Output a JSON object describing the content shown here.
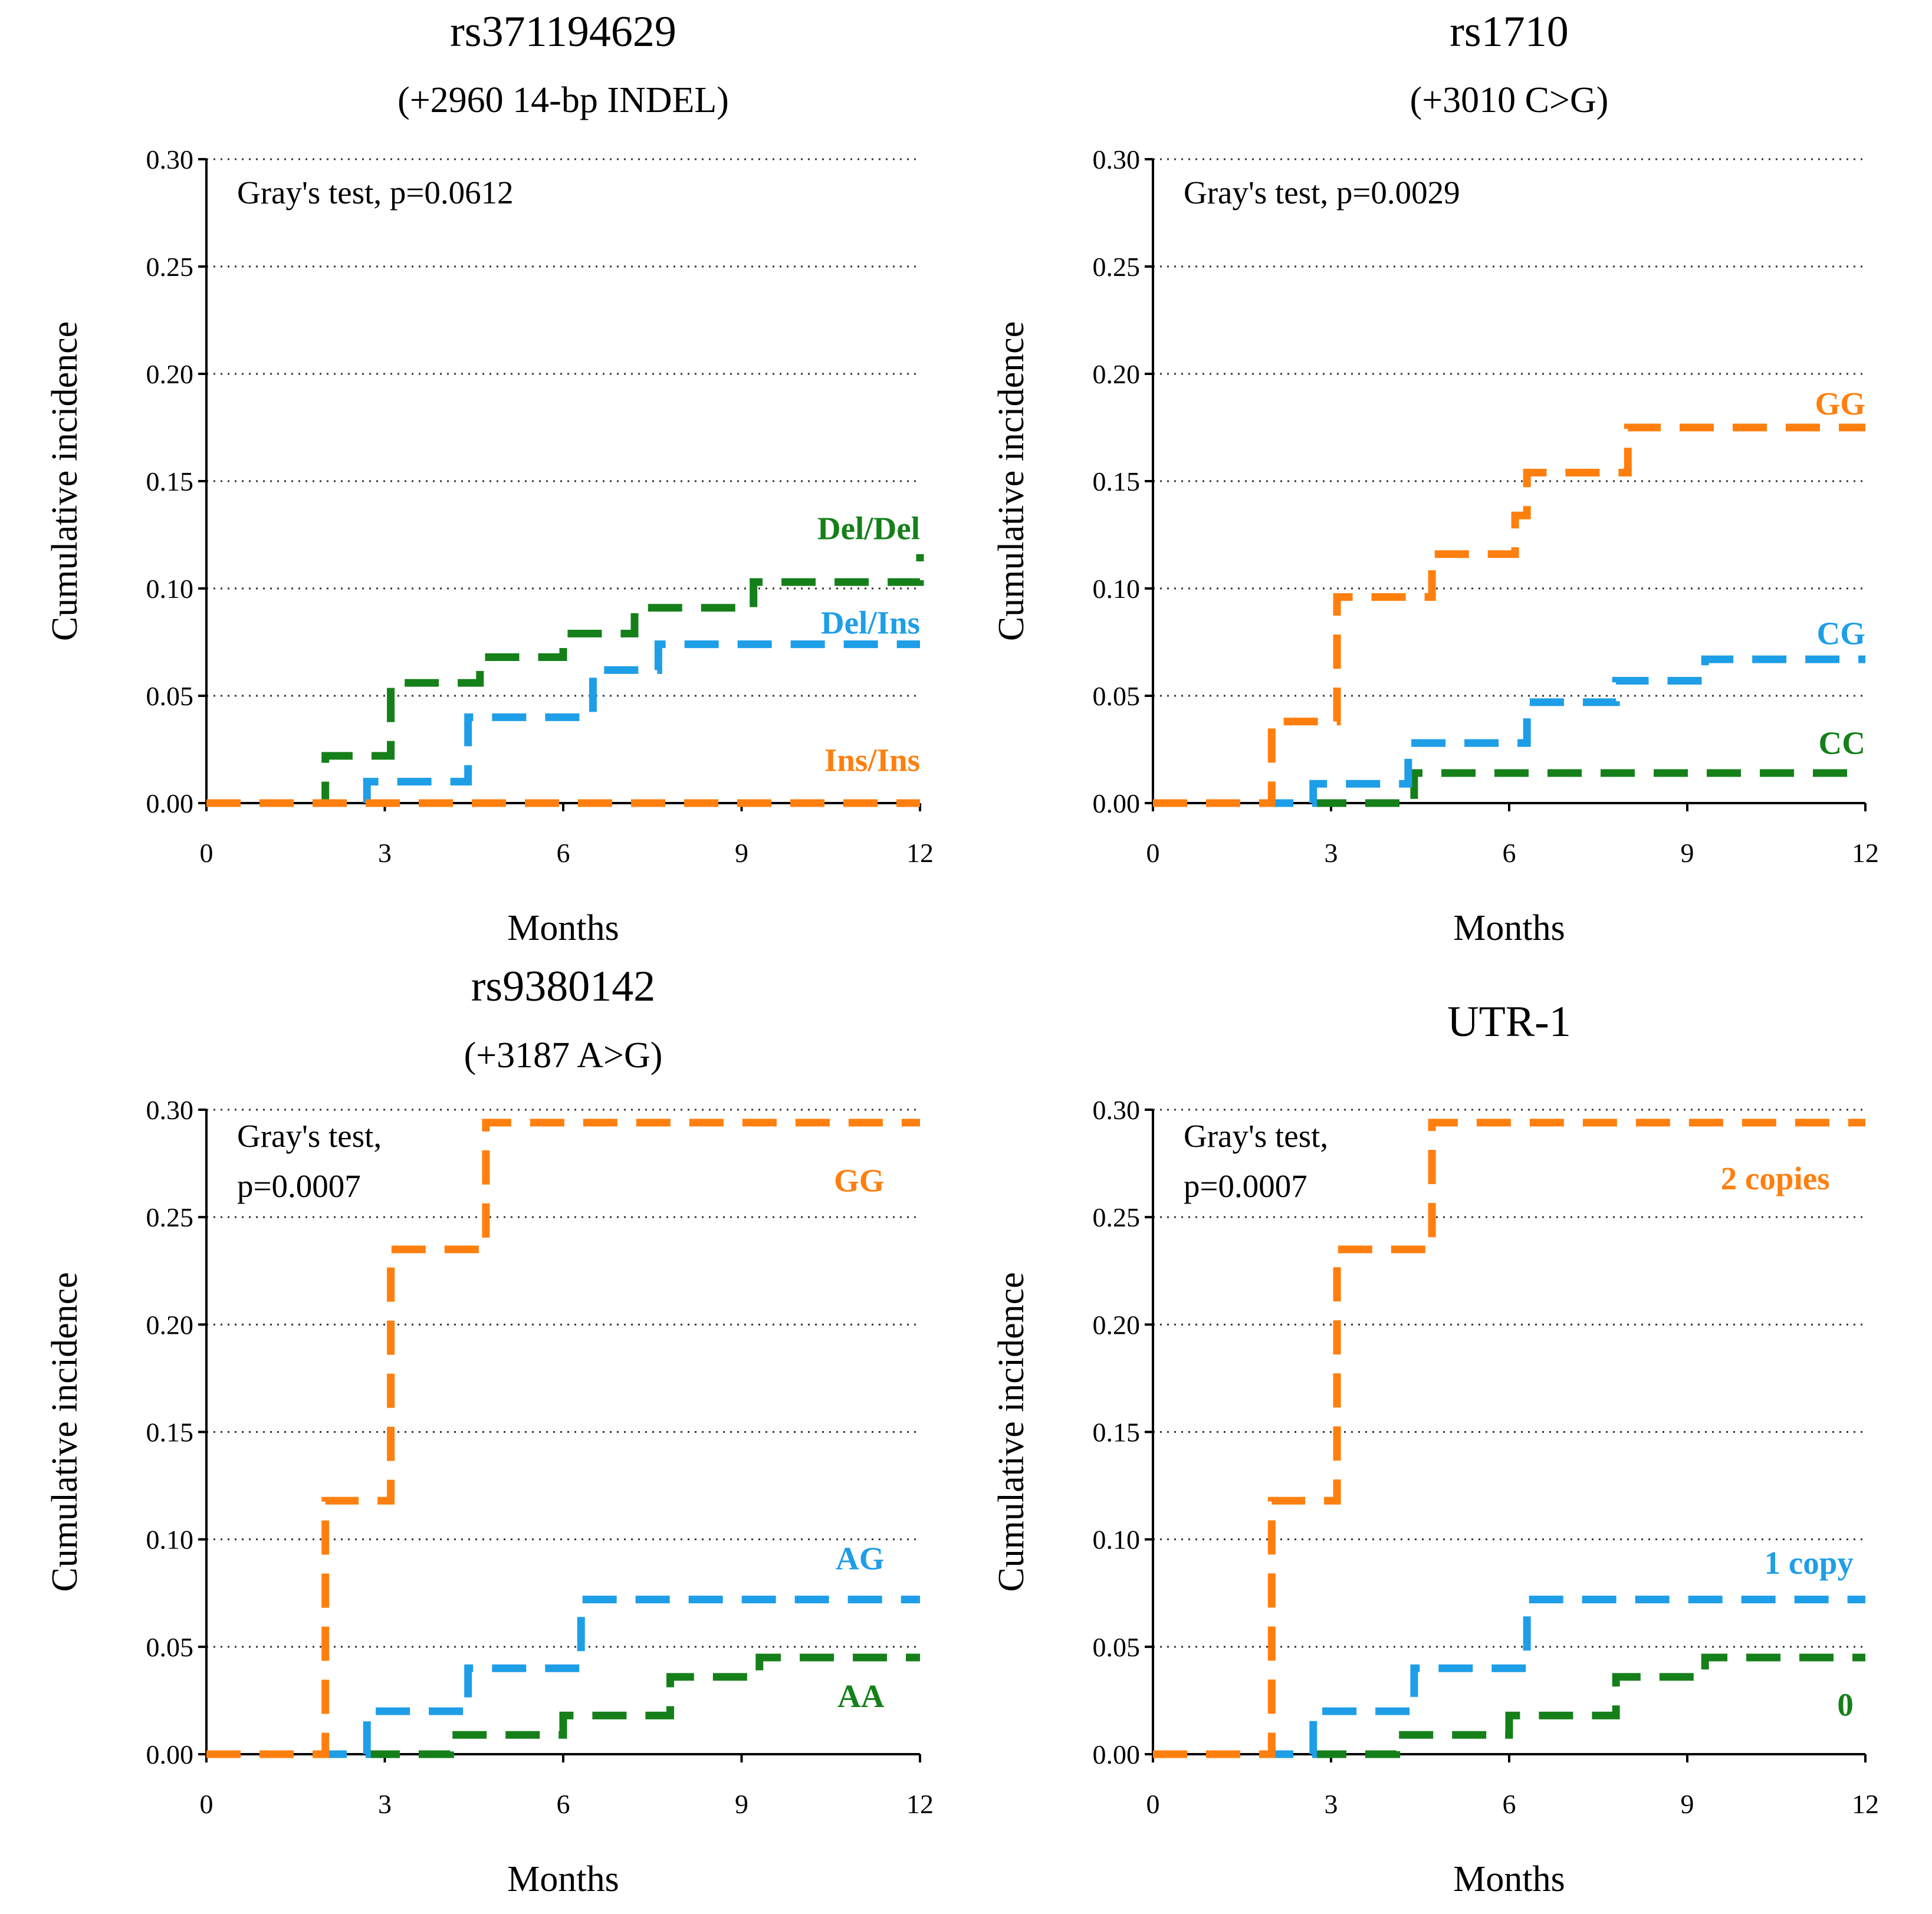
{
  "chart_data": [
    {
      "type": "line",
      "title": "rs371194629",
      "subtitle": "(+2960 14-bp INDEL)",
      "xlabel": "Months",
      "ylabel": "Cumulative incidence",
      "xlim": [
        0,
        12
      ],
      "ylim": [
        0,
        0.3
      ],
      "xticks": [
        "0",
        "3",
        "6",
        "9",
        "12"
      ],
      "yticks": [
        "0.00",
        "0.05",
        "0.10",
        "0.15",
        "0.20",
        "0.25",
        "0.30"
      ],
      "annotation": [
        "Gray's test, p=0.0612"
      ],
      "grid": "horizontal dotted",
      "series": [
        {
          "name": "Ins/Ins",
          "color": "#ff7f0e",
          "x": [
            0,
            12
          ],
          "y": [
            0,
            0
          ]
        },
        {
          "name": "Del/Ins",
          "color": "#1f9ee8",
          "x": [
            0,
            2.7,
            4.4,
            6.5,
            7.6,
            12
          ],
          "y": [
            0,
            0.01,
            0.04,
            0.062,
            0.074,
            0.074
          ]
        },
        {
          "name": "Del/Del",
          "color": "#15801a",
          "x": [
            0,
            2.0,
            3.1,
            4.6,
            6.0,
            7.2,
            9.2,
            12
          ],
          "y": [
            0,
            0.022,
            0.056,
            0.068,
            0.079,
            0.091,
            0.103,
            0.116
          ]
        }
      ]
    },
    {
      "type": "line",
      "title": "rs1710",
      "subtitle": "(+3010 C>G)",
      "xlabel": "Months",
      "ylabel": "Cumulative incidence",
      "xlim": [
        0,
        12
      ],
      "ylim": [
        0,
        0.3
      ],
      "xticks": [
        "0",
        "3",
        "6",
        "9",
        "12"
      ],
      "yticks": [
        "0.00",
        "0.05",
        "0.10",
        "0.15",
        "0.20",
        "0.25",
        "0.30"
      ],
      "annotation": [
        "Gray's test, p=0.0029"
      ],
      "grid": "horizontal dotted",
      "series": [
        {
          "name": "GG",
          "color": "#ff7f0e",
          "x": [
            0,
            2.0,
            3.1,
            4.7,
            6.1,
            6.3,
            8.0,
            12
          ],
          "y": [
            0,
            0.038,
            0.096,
            0.116,
            0.134,
            0.154,
            0.175,
            0.175
          ]
        },
        {
          "name": "CG",
          "color": "#1f9ee8",
          "x": [
            0,
            2.7,
            4.3,
            6.3,
            7.8,
            9.3,
            12
          ],
          "y": [
            0,
            0.009,
            0.028,
            0.047,
            0.057,
            0.067,
            0.067
          ]
        },
        {
          "name": "CC",
          "color": "#15801a",
          "x": [
            0,
            4.4,
            12
          ],
          "y": [
            0,
            0.014,
            0.014
          ]
        }
      ]
    },
    {
      "type": "line",
      "title": "rs9380142",
      "subtitle": "(+3187 A>G)",
      "xlabel": "Months",
      "ylabel": "Cumulative incidence",
      "xlim": [
        0,
        12
      ],
      "ylim": [
        0,
        0.3
      ],
      "xticks": [
        "0",
        "3",
        "6",
        "9",
        "12"
      ],
      "yticks": [
        "0.00",
        "0.05",
        "0.10",
        "0.15",
        "0.20",
        "0.25",
        "0.30"
      ],
      "annotation": [
        "Gray's test,",
        "p=0.0007"
      ],
      "grid": "horizontal dotted",
      "series": [
        {
          "name": "GG",
          "color": "#ff7f0e",
          "x": [
            0,
            2.0,
            3.1,
            4.7,
            12
          ],
          "y": [
            0,
            0.118,
            0.235,
            0.294,
            0.294
          ]
        },
        {
          "name": "AG",
          "color": "#1f9ee8",
          "x": [
            0,
            2.7,
            4.4,
            6.3,
            12
          ],
          "y": [
            0,
            0.02,
            0.04,
            0.072,
            0.072
          ]
        },
        {
          "name": "AA",
          "color": "#15801a",
          "x": [
            0,
            4.1,
            6.0,
            7.8,
            9.3,
            12
          ],
          "y": [
            0,
            0.009,
            0.018,
            0.036,
            0.045,
            0.045
          ]
        }
      ]
    },
    {
      "type": "line",
      "title": "UTR-1",
      "subtitle": "",
      "xlabel": "Months",
      "ylabel": "Cumulative incidence",
      "xlim": [
        0,
        12
      ],
      "ylim": [
        0,
        0.3
      ],
      "xticks": [
        "0",
        "3",
        "6",
        "9",
        "12"
      ],
      "yticks": [
        "0.00",
        "0.05",
        "0.10",
        "0.15",
        "0.20",
        "0.25",
        "0.30"
      ],
      "annotation": [
        "Gray's test,",
        "p=0.0007"
      ],
      "grid": "horizontal dotted",
      "series": [
        {
          "name": "2 copies",
          "color": "#ff7f0e",
          "x": [
            0,
            2.0,
            3.1,
            4.7,
            12
          ],
          "y": [
            0,
            0.118,
            0.235,
            0.294,
            0.294
          ]
        },
        {
          "name": "1 copy",
          "color": "#1f9ee8",
          "x": [
            0,
            2.7,
            4.4,
            6.3,
            12
          ],
          "y": [
            0,
            0.02,
            0.04,
            0.072,
            0.072
          ]
        },
        {
          "name": "0",
          "color": "#15801a",
          "x": [
            0,
            4.1,
            6.0,
            7.8,
            9.3,
            12
          ],
          "y": [
            0,
            0.009,
            0.018,
            0.036,
            0.045,
            0.045
          ]
        }
      ]
    }
  ]
}
